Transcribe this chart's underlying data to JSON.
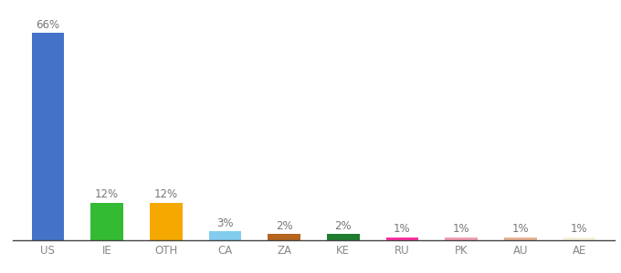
{
  "categories": [
    "US",
    "IE",
    "OTH",
    "CA",
    "ZA",
    "KE",
    "RU",
    "PK",
    "AU",
    "AE"
  ],
  "values": [
    66,
    12,
    12,
    3,
    2,
    2,
    1,
    1,
    1,
    1
  ],
  "labels": [
    "66%",
    "12%",
    "12%",
    "3%",
    "2%",
    "2%",
    "1%",
    "1%",
    "1%",
    "1%"
  ],
  "colors": [
    "#4472c9",
    "#33bb33",
    "#f5a800",
    "#82ccee",
    "#b5651d",
    "#1e7d2e",
    "#ff2da0",
    "#f09db0",
    "#e8b090",
    "#f5f0d8"
  ],
  "ylim": [
    0,
    72
  ],
  "background_color": "#ffffff",
  "label_fontsize": 8.5,
  "tick_fontsize": 8.5,
  "bar_width": 0.55
}
